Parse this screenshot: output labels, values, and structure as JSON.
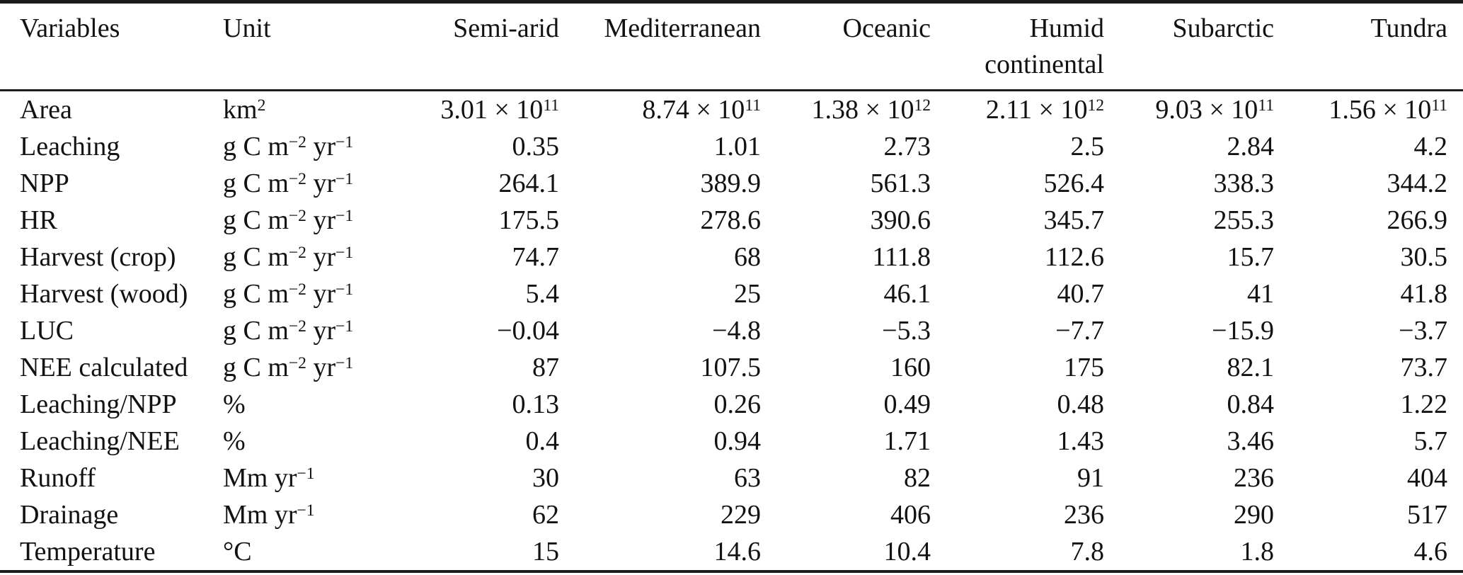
{
  "table": {
    "columns": [
      "Variables",
      "Unit",
      "Semi-arid",
      "Mediterranean",
      "Oceanic",
      "Humid continental",
      "Subarctic",
      "Tundra"
    ],
    "rows": [
      {
        "variable": "Area",
        "unit": "km^{2}",
        "values": [
          "3.01 × 10^{11}",
          "8.74 × 10^{11}",
          "1.38 × 10^{12}",
          "2.11 × 10^{12}",
          "9.03 × 10^{11}",
          "1.56 × 10^{11}"
        ]
      },
      {
        "variable": "Leaching",
        "unit": "g C m^{−2} yr^{−1}",
        "values": [
          "0.35",
          "1.01",
          "2.73",
          "2.5",
          "2.84",
          "4.2"
        ]
      },
      {
        "variable": "NPP",
        "unit": "g C m^{−2} yr^{−1}",
        "values": [
          "264.1",
          "389.9",
          "561.3",
          "526.4",
          "338.3",
          "344.2"
        ]
      },
      {
        "variable": "HR",
        "unit": "g C m^{−2} yr^{−1}",
        "values": [
          "175.5",
          "278.6",
          "390.6",
          "345.7",
          "255.3",
          "266.9"
        ]
      },
      {
        "variable": "Harvest (crop)",
        "unit": "g C m^{−2} yr^{−1}",
        "values": [
          "74.7",
          "68",
          "111.8",
          "112.6",
          "15.7",
          "30.5"
        ]
      },
      {
        "variable": "Harvest (wood)",
        "unit": "g C m^{−2} yr^{−1}",
        "values": [
          "5.4",
          "25",
          "46.1",
          "40.7",
          "41",
          "41.8"
        ]
      },
      {
        "variable": "LUC",
        "unit": "g C m^{−2} yr^{−1}",
        "values": [
          "−0.04",
          "−4.8",
          "−5.3",
          "−7.7",
          "−15.9",
          "−3.7"
        ]
      },
      {
        "variable": "NEE calculated",
        "unit": "g C m^{−2} yr^{−1}",
        "values": [
          "87",
          "107.5",
          "160",
          "175",
          "82.1",
          "73.7"
        ]
      },
      {
        "variable": "Leaching/NPP",
        "unit": "%",
        "values": [
          "0.13",
          "0.26",
          "0.49",
          "0.48",
          "0.84",
          "1.22"
        ]
      },
      {
        "variable": "Leaching/NEE",
        "unit": "%",
        "values": [
          "0.4",
          "0.94",
          "1.71",
          "1.43",
          "3.46",
          "5.7"
        ]
      },
      {
        "variable": "Runoff",
        "unit": "Mm yr^{−1}",
        "values": [
          "30",
          "63",
          "82",
          "91",
          "236",
          "404"
        ]
      },
      {
        "variable": "Drainage",
        "unit": "Mm yr^{−1}",
        "values": [
          "62",
          "229",
          "406",
          "236",
          "290",
          "517"
        ]
      },
      {
        "variable": "Temperature",
        "unit": "°C",
        "values": [
          "15",
          "14.6",
          "10.4",
          "7.8",
          "1.8",
          "4.6"
        ]
      }
    ]
  }
}
